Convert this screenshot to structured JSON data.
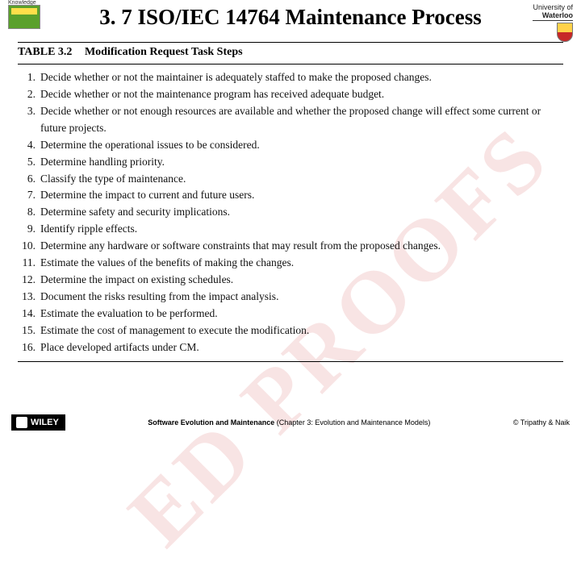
{
  "header": {
    "left_logo_label": "Knowledge",
    "right_logo_top": "University of",
    "right_logo_name": "Waterloo",
    "title": "3. 7 ISO/IEC 14764 Maintenance Process"
  },
  "table": {
    "label": "TABLE 3.2",
    "caption": "Modification Request Task Steps",
    "items": [
      "Decide whether or not the maintainer is adequately staffed to make the proposed changes.",
      "Decide whether or not the maintenance program has received adequate budget.",
      "Decide whether or not enough resources are available and whether the proposed change will effect some current or future projects.",
      "Determine the operational issues to be considered.",
      "Determine handling priority.",
      "Classify the type of maintenance.",
      "Determine the impact to current and future users.",
      "Determine safety and security implications.",
      "Identify ripple effects.",
      "Determine any hardware or software constraints that may result from the proposed changes.",
      "Estimate the values of the benefits of making the changes.",
      "Determine the impact on existing schedules.",
      "Document the risks resulting from the impact analysis.",
      "Estimate the evaluation to be performed.",
      "Estimate the cost of management to execute the modification.",
      "Place developed artifacts under CM."
    ]
  },
  "watermark": "ED PROOFS",
  "footer": {
    "publisher": "WILEY",
    "center_bold": "Software Evolution and Maintenance",
    "center_rest": " (Chapter 3: Evolution and Maintenance Models)",
    "copyright": "© Tripathy & Naik"
  }
}
